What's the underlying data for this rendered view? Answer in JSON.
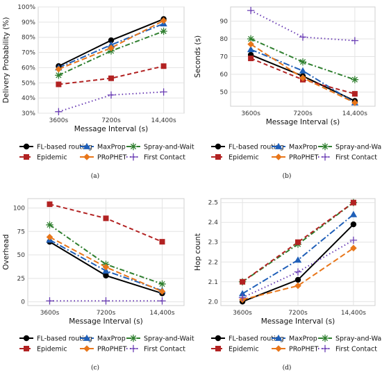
{
  "chart_data": [
    {
      "type": "line",
      "panel_label": "(a)",
      "categories": [
        "3600s",
        "7200s",
        "14,400s"
      ],
      "xlabel": "Message Interval (s)",
      "ylabel": "Delivery Probability (%)",
      "ylim": [
        30,
        100
      ],
      "yticks": [
        "30%",
        "40%",
        "50%",
        "60%",
        "70%",
        "80%",
        "90%",
        "100%"
      ],
      "ytick_values": [
        30,
        40,
        50,
        60,
        70,
        80,
        90,
        100
      ],
      "grid": true,
      "legend_position": "bottom",
      "series": [
        {
          "name": "FL-based routing",
          "values": [
            61,
            78,
            92
          ]
        },
        {
          "name": "MaxProp",
          "values": [
            60,
            75,
            89
          ]
        },
        {
          "name": "Spray-and-Wait",
          "values": [
            55,
            71,
            84
          ]
        },
        {
          "name": "Epidemic",
          "values": [
            49,
            53,
            61
          ]
        },
        {
          "name": "PRoPHET",
          "values": [
            59,
            73,
            91
          ]
        },
        {
          "name": "First Contact",
          "values": [
            31,
            42,
            44
          ]
        }
      ]
    },
    {
      "type": "line",
      "panel_label": "(b)",
      "categories": [
        "3600s",
        "7200s",
        "14,400s"
      ],
      "xlabel": "Message Interval (s)",
      "ylabel": "Seconds (s)",
      "ylim": [
        42,
        98
      ],
      "yticks": [
        "50",
        "60",
        "70",
        "80",
        "90"
      ],
      "ytick_values": [
        50,
        60,
        70,
        80,
        90
      ],
      "grid": true,
      "legend_position": "bottom",
      "series": [
        {
          "name": "FL-based routing",
          "values": [
            71,
            59,
            45
          ]
        },
        {
          "name": "MaxProp",
          "values": [
            74,
            62,
            44
          ]
        },
        {
          "name": "Spray-and-Wait",
          "values": [
            80,
            67,
            57
          ]
        },
        {
          "name": "Epidemic",
          "values": [
            69,
            57,
            49
          ]
        },
        {
          "name": "PRoPHET",
          "values": [
            77,
            58,
            44
          ]
        },
        {
          "name": "First Contact",
          "values": [
            96,
            81,
            79
          ]
        }
      ]
    },
    {
      "type": "line",
      "panel_label": "(c)",
      "categories": [
        "3600s",
        "7200s",
        "14,400s"
      ],
      "xlabel": "Message Interval (s)",
      "ylabel": "Overhead",
      "ylim": [
        -4,
        110
      ],
      "yticks": [
        "0",
        "25",
        "50",
        "75",
        "100"
      ],
      "ytick_values": [
        0,
        25,
        50,
        75,
        100
      ],
      "grid": true,
      "legend_position": "bottom",
      "series": [
        {
          "name": "FL-based routing",
          "values": [
            64,
            28,
            9
          ]
        },
        {
          "name": "MaxProp",
          "values": [
            66,
            33,
            12
          ]
        },
        {
          "name": "Spray-and-Wait",
          "values": [
            82,
            40,
            19
          ]
        },
        {
          "name": "Epidemic",
          "values": [
            104,
            89,
            64
          ]
        },
        {
          "name": "PRoPHET",
          "values": [
            69,
            37,
            11
          ]
        },
        {
          "name": "First Contact",
          "values": [
            1,
            1,
            1
          ]
        }
      ]
    },
    {
      "type": "line",
      "panel_label": "(d)",
      "categories": [
        "3600s",
        "7200s",
        "14,400s"
      ],
      "xlabel": "Message Interval (s)",
      "ylabel": "Hop count",
      "ylim": [
        1.98,
        2.52
      ],
      "yticks": [
        "2.0",
        "2.1",
        "2.2",
        "2.3",
        "2.4",
        "2.5"
      ],
      "ytick_values": [
        2.0,
        2.1,
        2.2,
        2.3,
        2.4,
        2.5
      ],
      "grid": true,
      "legend_position": "bottom",
      "series": [
        {
          "name": "FL-based routing",
          "values": [
            2.0,
            2.11,
            2.39
          ]
        },
        {
          "name": "MaxProp",
          "values": [
            2.04,
            2.21,
            2.44
          ]
        },
        {
          "name": "Spray-and-Wait",
          "values": [
            2.1,
            2.29,
            2.5
          ]
        },
        {
          "name": "Epidemic",
          "values": [
            2.1,
            2.3,
            2.5
          ]
        },
        {
          "name": "PRoPHET",
          "values": [
            2.01,
            2.08,
            2.27
          ]
        },
        {
          "name": "First Contact",
          "values": [
            2.02,
            2.15,
            2.31
          ]
        }
      ]
    }
  ],
  "series_styles": [
    {
      "name": "FL-based routing",
      "color": "#000000",
      "dash": "",
      "marker": "circle"
    },
    {
      "name": "MaxProp",
      "color": "#1f5fb8",
      "dash": "9 3 2 3",
      "marker": "triangle"
    },
    {
      "name": "Spray-and-Wait",
      "color": "#2f7f2f",
      "dash": "7 3 2 3",
      "marker": "asterisk"
    },
    {
      "name": "Epidemic",
      "color": "#b22222",
      "dash": "6 4",
      "marker": "square"
    },
    {
      "name": "PRoPHET",
      "color": "#e8761a",
      "dash": "8 4",
      "marker": "diamond"
    },
    {
      "name": "First Contact",
      "color": "#6a3db4",
      "dash": "1.5 3.5",
      "marker": "plus"
    }
  ]
}
